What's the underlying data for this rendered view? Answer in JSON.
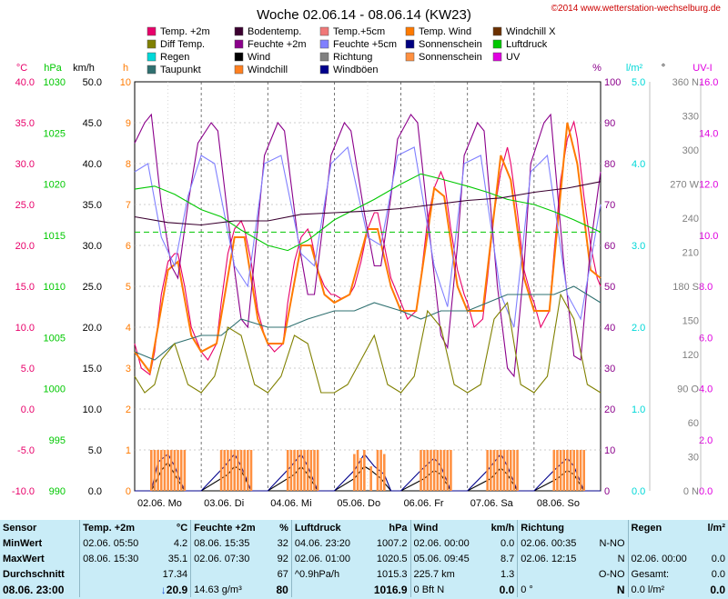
{
  "header": {
    "title": "Woche 02.06.14 - 08.06.14 (KW23)",
    "copyright": "©2014 www.wetterstation-wechselburg.de"
  },
  "legend": [
    {
      "label": "Temp. +2m",
      "color": "#e8006a"
    },
    {
      "label": "Bodentemp.",
      "color": "#3b0030"
    },
    {
      "label": "Temp.+5cm",
      "color": "#f07878"
    },
    {
      "label": "Temp. Wind",
      "color": "#ff7a00"
    },
    {
      "label": "Windchill X",
      "color": "#6b3000"
    },
    {
      "label": "Diff Temp.",
      "color": "#808000"
    },
    {
      "label": "Feuchte +2m",
      "color": "#8b008b"
    },
    {
      "label": "Feuchte +5cm",
      "color": "#8080ff"
    },
    {
      "label": "Sonnenschein",
      "color": "#000080"
    },
    {
      "label": "Luftdruck",
      "color": "#00c800"
    },
    {
      "label": "Regen",
      "color": "#00d8d8"
    },
    {
      "label": "Wind",
      "color": "#000000"
    },
    {
      "label": "Richtung",
      "color": "#808080"
    },
    {
      "label": "Sonnenschein",
      "color": "#ff9040"
    },
    {
      "label": "UV",
      "color": "#e000e0"
    },
    {
      "label": "Taupunkt",
      "color": "#2f7070"
    },
    {
      "label": "Windchill",
      "color": "#ff8020"
    },
    {
      "label": "Windböen",
      "color": "#00008b"
    }
  ],
  "axes": {
    "units": {
      "temp": "°C",
      "hpa": "hPa",
      "kmh": "km/h",
      "h": "h",
      "pct": "%",
      "rain": "l/m²",
      "deg": "°",
      "uv": "UV-I"
    },
    "temp_ticks": [
      "40.0",
      "35.0",
      "30.0",
      "25.0",
      "20.0",
      "15.0",
      "10.0",
      "5.0",
      "0.0",
      "-5.0",
      "-10.0"
    ],
    "hpa_ticks": [
      "1030",
      "1025",
      "1020",
      "1015",
      "1010",
      "1005",
      "1000",
      "995",
      "990"
    ],
    "kmh_ticks": [
      "50.0",
      "45.0",
      "40.0",
      "35.0",
      "30.0",
      "25.0",
      "20.0",
      "15.0",
      "10.0",
      "5.0",
      "0.0"
    ],
    "h_ticks": [
      "10",
      "9",
      "8",
      "7",
      "6",
      "5",
      "4",
      "3",
      "2",
      "1",
      "0"
    ],
    "pct_ticks": [
      "100",
      "90",
      "80",
      "70",
      "60",
      "50",
      "40",
      "30",
      "20",
      "10",
      "0"
    ],
    "rain_ticks": [
      "5.0",
      "4.0",
      "3.0",
      "2.0",
      "1.0",
      "0.0"
    ],
    "deg_ticks": [
      "360 N",
      "330",
      "300",
      "270 W",
      "240",
      "210",
      "180 S",
      "150",
      "120",
      "90 O",
      "60",
      "30",
      "0 N"
    ],
    "uv_ticks": [
      "16.0",
      "14.0",
      "12.0",
      "10.0",
      "8.0",
      "6.0",
      "4.0",
      "2.0",
      "0.0"
    ],
    "colors": {
      "temp": "#e8006a",
      "hpa": "#00c800",
      "kmh": "#000000",
      "h": "#ff7a00",
      "pct": "#8b008b",
      "rain": "#00d8d8",
      "deg": "#808080",
      "uv": "#e000e0"
    }
  },
  "chart_data": {
    "type": "line",
    "x_labels": [
      "02.06. Mo",
      "03.06. Di",
      "04.06. Mi",
      "05.06. Do",
      "06.06. Fr",
      "07.06. Sa",
      "08.06. So"
    ],
    "x_days": [
      0,
      1,
      2,
      3,
      4,
      5,
      6,
      7
    ],
    "series": [
      {
        "name": "Temp. +2m",
        "unit": "°C",
        "color": "#e8006a",
        "x": [
          0,
          0.1,
          0.23,
          0.3,
          0.4,
          0.5,
          0.6,
          0.65,
          0.75,
          0.85,
          0.95,
          1.0,
          1.1,
          1.23,
          1.3,
          1.4,
          1.5,
          1.6,
          1.65,
          1.75,
          1.85,
          1.95,
          2.0,
          2.1,
          2.23,
          2.3,
          2.4,
          2.5,
          2.6,
          2.65,
          2.75,
          2.85,
          2.95,
          3.0,
          3.1,
          3.23,
          3.3,
          3.4,
          3.5,
          3.6,
          3.65,
          3.75,
          3.85,
          3.95,
          4.0,
          4.1,
          4.23,
          4.3,
          4.4,
          4.5,
          4.6,
          4.65,
          4.75,
          4.85,
          4.95,
          5.0,
          5.1,
          5.23,
          5.3,
          5.4,
          5.5,
          5.6,
          5.65,
          5.75,
          5.85,
          5.95,
          6.0,
          6.1,
          6.23,
          6.3,
          6.4,
          6.5,
          6.6,
          6.65,
          6.75,
          6.85,
          6.95,
          7.0
        ],
        "y": [
          8,
          5,
          4.2,
          7,
          14,
          18,
          19,
          19,
          15,
          10,
          8,
          7,
          6,
          8,
          13,
          19,
          22,
          23,
          22,
          18,
          12,
          9,
          8,
          7,
          8,
          13,
          18,
          21,
          22,
          21,
          17,
          15,
          14,
          14,
          13.5,
          14,
          15,
          18,
          22,
          24,
          24,
          20,
          16,
          14,
          13,
          11,
          12,
          16,
          23,
          27,
          29,
          28,
          22,
          17,
          14,
          13,
          10,
          11,
          16,
          24,
          29,
          32,
          30,
          24,
          17,
          14,
          13,
          10,
          12,
          19,
          28,
          33,
          35.1,
          33,
          26,
          20,
          16,
          15
        ]
      },
      {
        "name": "Temp. Wind",
        "unit": "°C",
        "color": "#ff7a00",
        "x": [
          0,
          0.23,
          0.5,
          0.65,
          0.85,
          1.0,
          1.23,
          1.5,
          1.65,
          1.85,
          2.0,
          2.23,
          2.5,
          2.65,
          2.85,
          3.0,
          3.23,
          3.5,
          3.65,
          3.85,
          4.0,
          4.23,
          4.5,
          4.65,
          4.85,
          5.0,
          5.23,
          5.5,
          5.65,
          5.85,
          6.0,
          6.23,
          6.5,
          6.65,
          6.85,
          7.0
        ],
        "y": [
          7,
          4.5,
          17,
          18,
          9,
          7,
          8,
          21,
          21,
          11,
          8,
          8,
          20,
          20,
          14,
          13,
          14,
          22,
          22,
          15,
          12,
          12,
          27,
          26,
          15,
          12,
          12,
          31,
          28,
          16,
          12,
          12,
          35,
          30,
          17,
          16
        ]
      },
      {
        "name": "Feuchte +2m",
        "unit": "%",
        "color": "#8b008b",
        "x": [
          0,
          0.15,
          0.25,
          0.4,
          0.55,
          0.65,
          0.8,
          0.95,
          1.15,
          1.25,
          1.45,
          1.6,
          1.7,
          1.85,
          1.95,
          2.15,
          2.25,
          2.45,
          2.6,
          2.7,
          2.85,
          2.95,
          3.15,
          3.25,
          3.45,
          3.6,
          3.7,
          3.85,
          3.95,
          4.15,
          4.25,
          4.45,
          4.6,
          4.7,
          4.85,
          4.95,
          5.15,
          5.25,
          5.45,
          5.6,
          5.7,
          5.85,
          5.95,
          6.15,
          6.25,
          6.45,
          6.6,
          6.7,
          6.85,
          7.0
        ],
        "y": [
          85,
          90,
          92,
          70,
          55,
          52,
          70,
          85,
          90,
          88,
          60,
          42,
          40,
          65,
          82,
          90,
          88,
          62,
          48,
          48,
          68,
          82,
          90,
          88,
          68,
          55,
          55,
          72,
          86,
          92,
          90,
          60,
          38,
          35,
          60,
          82,
          90,
          88,
          50,
          30,
          28,
          55,
          80,
          90,
          92,
          55,
          33,
          32,
          60,
          78
        ]
      },
      {
        "name": "Feuchte +5cm",
        "unit": "%",
        "color": "#8080ff",
        "x": [
          0,
          0.2,
          0.4,
          0.6,
          0.8,
          1.0,
          1.2,
          1.5,
          1.7,
          1.95,
          2.2,
          2.5,
          2.7,
          2.95,
          3.2,
          3.5,
          3.7,
          3.95,
          4.2,
          4.5,
          4.7,
          4.95,
          5.2,
          5.5,
          5.7,
          5.95,
          6.2,
          6.5,
          6.7,
          7.0
        ],
        "y": [
          78,
          80,
          62,
          55,
          72,
          82,
          80,
          55,
          50,
          80,
          82,
          58,
          55,
          80,
          84,
          62,
          60,
          82,
          84,
          55,
          45,
          80,
          82,
          48,
          40,
          78,
          82,
          48,
          42,
          70
        ]
      },
      {
        "name": "Luftdruck",
        "unit": "hPa",
        "color": "#00c800",
        "x": [
          0,
          0.3,
          0.6,
          1.0,
          1.3,
          1.6,
          2.0,
          2.3,
          2.6,
          3.0,
          3.3,
          3.6,
          4.0,
          4.3,
          4.6,
          5.0,
          5.3,
          5.6,
          6.0,
          6.3,
          6.6,
          7.0
        ],
        "y": [
          1019.5,
          1019.8,
          1019,
          1017.5,
          1016.8,
          1015.5,
          1014,
          1013.5,
          1014.5,
          1016.5,
          1017.5,
          1018.5,
          1020,
          1021,
          1020.5,
          1019.8,
          1019.2,
          1018.5,
          1018,
          1017.3,
          1016.5,
          1015.3
        ]
      },
      {
        "name": "Bodentemp.",
        "unit": "°C",
        "color": "#3b0030",
        "x": [
          0,
          0.5,
          1.0,
          1.5,
          2.0,
          2.5,
          3.0,
          3.5,
          4.0,
          4.5,
          5.0,
          5.5,
          6.0,
          6.5,
          7.0
        ],
        "y": [
          23.5,
          22.8,
          22.5,
          23.0,
          23.0,
          23.8,
          24.0,
          24.2,
          24.5,
          25.0,
          25.5,
          25.8,
          26.5,
          27.0,
          27.8
        ]
      },
      {
        "name": "Taupunkt",
        "unit": "°C",
        "color": "#2f7070",
        "x": [
          0,
          0.3,
          0.6,
          1.0,
          1.3,
          1.6,
          2.0,
          2.3,
          2.6,
          3.0,
          3.3,
          3.6,
          4.0,
          4.3,
          4.6,
          5.0,
          5.3,
          5.6,
          6.0,
          6.3,
          6.6,
          7.0
        ],
        "y": [
          7,
          6,
          8,
          9,
          9,
          11,
          10,
          10,
          11,
          12,
          12,
          13,
          12,
          11,
          12,
          12,
          13,
          14,
          14,
          14,
          15,
          13
        ]
      },
      {
        "name": "Diff Temp.",
        "unit": "°C",
        "color": "#808000",
        "x": [
          0,
          0.15,
          0.3,
          0.4,
          0.6,
          0.8,
          1.0,
          1.2,
          1.4,
          1.6,
          1.8,
          2.0,
          2.2,
          2.4,
          2.6,
          2.8,
          3.0,
          3.2,
          3.4,
          3.6,
          3.8,
          4.0,
          4.2,
          4.4,
          4.6,
          4.8,
          5.0,
          5.2,
          5.4,
          5.6,
          5.8,
          6.0,
          6.2,
          6.4,
          6.6,
          6.8,
          7.0
        ],
        "y": [
          4,
          2,
          3,
          6,
          8,
          3,
          2,
          4,
          10,
          9,
          3,
          2,
          4,
          9,
          8,
          2,
          2,
          3,
          6,
          9,
          3,
          2,
          4,
          12,
          10,
          3,
          2,
          3,
          11,
          13,
          3,
          2,
          4,
          14,
          11,
          3,
          2
        ]
      },
      {
        "name": "Wind",
        "unit": "km/h",
        "color": "#000000",
        "x": [
          0,
          0.25,
          0.4,
          0.5,
          0.6,
          0.75,
          1.0,
          1.4,
          1.5,
          1.6,
          1.75,
          2.0,
          2.4,
          2.5,
          2.6,
          2.75,
          3.0,
          3.3,
          3.45,
          3.55,
          3.7,
          3.85,
          4.0,
          4.35,
          4.5,
          4.6,
          4.75,
          5.0,
          5.35,
          5.5,
          5.6,
          5.75,
          6.0,
          6.35,
          6.5,
          6.6,
          6.75,
          7.0
        ],
        "y": [
          0,
          0,
          2.5,
          3.5,
          2,
          0,
          0,
          2,
          3,
          2.5,
          0,
          0,
          2,
          3,
          2,
          0,
          0,
          1.5,
          3,
          2.5,
          1.5,
          0,
          0,
          1.5,
          2.5,
          2,
          0,
          0,
          1.5,
          2.8,
          2,
          0,
          0,
          1.5,
          2.5,
          2,
          0,
          0
        ]
      },
      {
        "name": "Windböen",
        "unit": "km/h",
        "color": "#00008b",
        "x": [
          0,
          0.25,
          0.35,
          0.5,
          0.6,
          0.75,
          1.0,
          1.35,
          1.5,
          1.6,
          1.75,
          2.0,
          2.35,
          2.5,
          2.6,
          2.75,
          3.0,
          3.3,
          3.45,
          3.6,
          3.75,
          3.85,
          4.0,
          4.3,
          4.5,
          4.6,
          4.75,
          5.0,
          5.3,
          5.5,
          5.6,
          5.75,
          6.0,
          6.3,
          6.5,
          6.6,
          6.75,
          7.0
        ],
        "y": [
          0,
          0,
          3.5,
          4.5,
          3,
          0,
          0,
          3,
          4.5,
          3,
          0,
          0,
          3,
          4.5,
          3,
          0,
          0,
          2.5,
          4.5,
          3,
          2,
          0,
          0,
          2.5,
          4,
          3,
          0,
          0,
          2.5,
          4.5,
          3,
          0,
          0,
          2.5,
          4,
          3,
          0,
          0
        ]
      },
      {
        "name": "Sonnenschein",
        "unit": "h",
        "color": "#ff9040",
        "style": "bars",
        "x": [
          0.25,
          0.3,
          0.35,
          0.4,
          0.45,
          0.5,
          0.55,
          0.6,
          0.65,
          0.7,
          0.75,
          1.3,
          1.35,
          1.4,
          1.45,
          1.5,
          1.55,
          1.6,
          1.65,
          1.7,
          1.75,
          2.3,
          2.35,
          2.4,
          2.45,
          2.5,
          2.55,
          2.6,
          2.65,
          2.7,
          2.75,
          3.3,
          3.35,
          3.4,
          3.45,
          3.55,
          3.65,
          3.7,
          3.75,
          4.3,
          4.35,
          4.4,
          4.45,
          4.5,
          4.55,
          4.6,
          4.65,
          4.7,
          4.75,
          5.3,
          5.35,
          5.4,
          5.45,
          5.5,
          5.55,
          5.6,
          5.65,
          5.7,
          5.75,
          6.3,
          6.35,
          6.4,
          6.45,
          6.5,
          6.55,
          6.6,
          6.65,
          6.7,
          6.75
        ],
        "y": [
          1,
          1,
          1,
          1,
          1,
          1,
          1,
          1,
          1,
          1,
          1,
          1,
          1,
          1,
          1,
          1,
          1,
          1,
          1,
          1,
          1,
          1,
          1,
          1,
          1,
          1,
          1,
          1,
          1,
          1,
          1,
          0.9,
          1,
          0.8,
          1,
          0.6,
          1,
          1,
          0.9,
          1,
          1,
          1,
          1,
          1,
          1,
          1,
          1,
          1,
          1,
          1,
          1,
          1,
          1,
          1,
          1,
          1,
          1,
          1,
          1,
          1,
          1,
          1,
          1,
          1,
          1,
          1,
          1,
          1,
          1
        ]
      }
    ]
  },
  "stats": {
    "headers": {
      "sensor": "Sensor",
      "temp": "Temp. +2m",
      "temp_unit": "°C",
      "hum": "Feuchte +2m",
      "hum_unit": "%",
      "press": "Luftdruck",
      "press_unit": "hPa",
      "wind": "Wind",
      "wind_unit": "km/h",
      "dir": "Richtung",
      "rain": "Regen",
      "rain_unit": "l/m²"
    },
    "rows": [
      {
        "label": "MinWert",
        "temp_t": "02.06.   05:50",
        "temp_v": "4.2",
        "hum_t": "08.06.   15:35",
        "hum_v": "32",
        "press_t": "04.06.   23:20",
        "press_v": "1007.2",
        "wind_t": "02.06.   00:00",
        "wind_v": "0.0",
        "dir_t": "02.06.   00:35",
        "dir_v": "N-NO",
        "rain_t": "",
        "rain_v": ""
      },
      {
        "label": "MaxWert",
        "temp_t": "08.06.   15:30",
        "temp_v": "35.1",
        "hum_t": "02.06.   07:30",
        "hum_v": "92",
        "press_t": "02.06.   01:00",
        "press_v": "1020.5",
        "wind_t": "05.06.   09:45",
        "wind_v": "8.7",
        "dir_t": "02.06.   12:15",
        "dir_v": "N",
        "rain_t": "02.06.   00:00",
        "rain_v": "0.0"
      },
      {
        "label": "Durchschnitt",
        "temp_t": "",
        "temp_v": "17.34",
        "hum_t": "",
        "hum_v": "67",
        "press_t": "^0.9hPa/h",
        "press_v": "1015.3",
        "wind_t": "225.7 km",
        "wind_v": "1.3",
        "dir_t": "",
        "dir_v": "O-NO",
        "rain_t": "Gesamt:",
        "rain_v": "0.0"
      }
    ],
    "current": {
      "label": "08.06. 23:00",
      "temp_arrow": "↓",
      "temp_v": "20.9",
      "hum_t": "14.63 g/m³",
      "hum_v": "80",
      "press_v": "1016.9",
      "wind_t": "0 Bft N",
      "wind_v": "0.0",
      "dir_t": "0 °",
      "dir_v": "N",
      "rain_t": "0.0 l/m²",
      "rain_v": "0.0"
    }
  }
}
